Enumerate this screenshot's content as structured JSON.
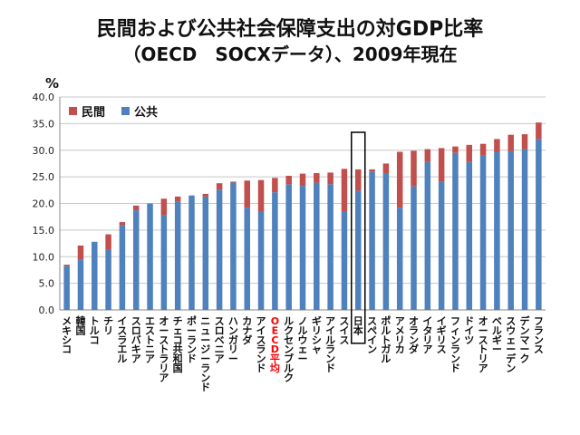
{
  "chart_data": {
    "type": "bar",
    "stacked": true,
    "title": "民間および公共社会保障支出の対GDP比率",
    "subtitle": "（OECD　SOCXデータ）、2009年現在",
    "ylabel": "%",
    "ylim": [
      0,
      40
    ],
    "yticks": [
      "0.0",
      "5.0",
      "10.0",
      "15.0",
      "20.0",
      "25.0",
      "30.0",
      "35.0",
      "40.0"
    ],
    "grid": true,
    "legend_position": "top-left",
    "highlight": {
      "OECD平均": "#ff0000",
      "日本": "box"
    },
    "colors": {
      "民間": "#c0504d",
      "公共": "#4f81bd"
    },
    "categories": [
      "メキシコ",
      "韓国",
      "トルコ",
      "チリ",
      "イスラエル",
      "スロバキア",
      "エストニア",
      "オーストラリア",
      "チェコ共和国",
      "ポーランド",
      "ニュージーランド",
      "スロベニア",
      "ハンガリー",
      "カナダ",
      "アイスランド",
      "OECD平均",
      "ルクセンブルク",
      "ノルウェー",
      "ギリシャ",
      "アイルランド",
      "スイス",
      "日本",
      "スペイン",
      "ポルトガル",
      "アメリカ",
      "オランダ",
      "イタリア",
      "イギリス",
      "フィンランド",
      "ドイツ",
      "オーストリア",
      "ベルギー",
      "スウェーデン",
      "デンマーク",
      "フランス"
    ],
    "series": [
      {
        "name": "公共",
        "values": [
          8.2,
          9.4,
          12.8,
          11.3,
          15.9,
          18.7,
          20.0,
          17.8,
          20.4,
          21.5,
          21.3,
          22.6,
          23.9,
          19.2,
          18.4,
          22.1,
          23.6,
          23.3,
          23.9,
          23.6,
          18.4,
          22.4,
          26.0,
          25.6,
          19.2,
          23.2,
          27.8,
          24.1,
          29.5,
          27.8,
          29.1,
          29.7,
          29.8,
          30.2,
          32.1
        ]
      },
      {
        "name": "民間",
        "values": [
          0.3,
          2.7,
          0.0,
          2.9,
          0.6,
          0.9,
          0.0,
          3.1,
          0.9,
          0.0,
          0.5,
          1.2,
          0.2,
          5.1,
          6.0,
          2.7,
          1.6,
          2.3,
          1.8,
          2.2,
          8.1,
          4.0,
          0.4,
          1.9,
          10.5,
          6.7,
          2.4,
          6.3,
          1.2,
          3.2,
          2.1,
          2.4,
          3.1,
          2.8,
          3.1
        ]
      }
    ]
  }
}
